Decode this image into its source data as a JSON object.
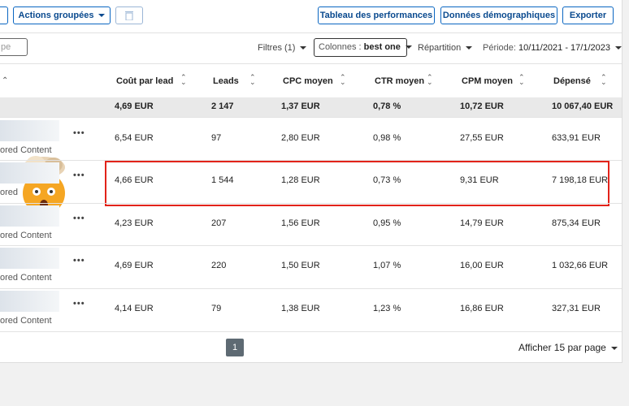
{
  "toolbar": {
    "actions": "Actions groupées",
    "buttons": [
      "Tableau des performances",
      "Données démographiques",
      "Exporter"
    ]
  },
  "filter_bar": {
    "search_fragment": "pe",
    "filters": "Filtres (1)",
    "columns_label": "Colonnes :",
    "columns_value": "best one",
    "breakdown": "Répartition",
    "period_label": "Période:",
    "period_value": "10/11/2021 - 17/1/2023"
  },
  "table": {
    "headers": [
      "Coût par lead",
      "Leads",
      "CPC moyen",
      "CTR moyen",
      "CPM moyen",
      "Dépensé"
    ],
    "total": [
      "4,69 EUR",
      "2 147",
      "1,37 EUR",
      "0,78 %",
      "10,72 EUR",
      "10 067,40 EUR"
    ],
    "rows": [
      {
        "subtitle": "ored Content",
        "cells": [
          "6,54 EUR",
          "97",
          "2,80 EUR",
          "0,98 %",
          "27,55 EUR",
          "633,91 EUR"
        ]
      },
      {
        "subtitle": "ored",
        "cells": [
          "4,66 EUR",
          "1 544",
          "1,28 EUR",
          "0,73 %",
          "9,31 EUR",
          "7 198,18 EUR"
        ]
      },
      {
        "subtitle": "ored Content",
        "cells": [
          "4,23 EUR",
          "207",
          "1,56 EUR",
          "0,95 %",
          "14,79 EUR",
          "875,34 EUR"
        ]
      },
      {
        "subtitle": "ored Content",
        "cells": [
          "4,69 EUR",
          "220",
          "1,50 EUR",
          "1,07 %",
          "16,00 EUR",
          "1 032,66 EUR"
        ]
      },
      {
        "subtitle": "ored Content",
        "cells": [
          "4,14 EUR",
          "79",
          "1,38 EUR",
          "1,23 %",
          "16,86 EUR",
          "327,31 EUR"
        ]
      }
    ]
  },
  "pagination": {
    "page": "1",
    "per_page": "Afficher 15 par page"
  }
}
